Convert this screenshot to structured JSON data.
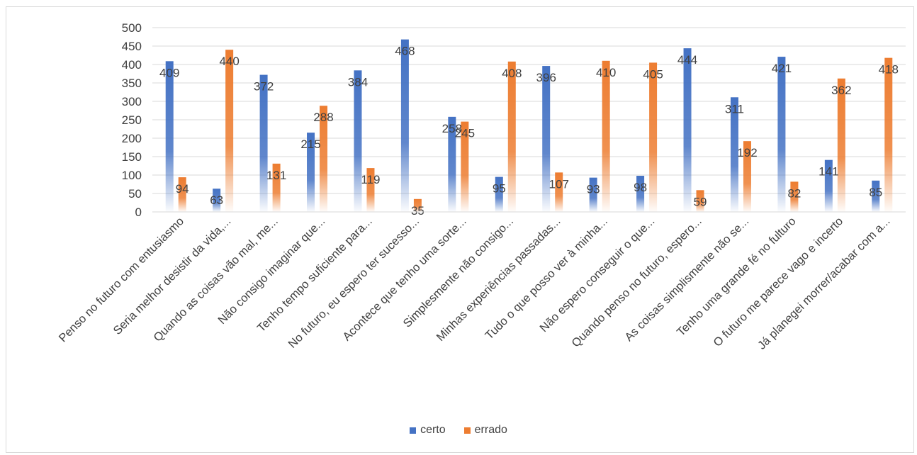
{
  "chart_data": {
    "type": "bar",
    "title": "",
    "xlabel": "",
    "ylabel": "",
    "ylim": [
      0,
      500
    ],
    "yticks": [
      0,
      50,
      100,
      150,
      200,
      250,
      300,
      350,
      400,
      450,
      500
    ],
    "grid": true,
    "legend_position": "bottom",
    "categories": [
      "Penso no futuro com entusiasmo",
      "Seria melhor desistir da vida,...",
      "Quando as coisas vão mal, me...",
      "Não consigo imaginar que...",
      "Tenho tempo suficiente para...",
      "No futuro, eu espero ter sucesso...",
      "Acontece que tenho uma sorte...",
      "Simplesmente não consigo...",
      "Minhas experiências passadas...",
      "Tudo o que posso ver à minha...",
      "Não espero conseguir o que...",
      "Quando penso no futuro, espero...",
      "As coisas simplismente não se...",
      "Tenho uma grande fé no fulturo",
      "O futuro me parece vago e incerto",
      "Já planegei morrer/acabar com a..."
    ],
    "series": [
      {
        "name": "certo",
        "color": "#4472c4",
        "values": [
          409,
          63,
          372,
          215,
          384,
          468,
          258,
          95,
          396,
          93,
          98,
          444,
          311,
          421,
          141,
          85
        ]
      },
      {
        "name": "errado",
        "color": "#ed7d31",
        "values": [
          94,
          440,
          131,
          288,
          119,
          35,
          245,
          408,
          107,
          410,
          405,
          59,
          192,
          82,
          362,
          418
        ]
      }
    ]
  }
}
